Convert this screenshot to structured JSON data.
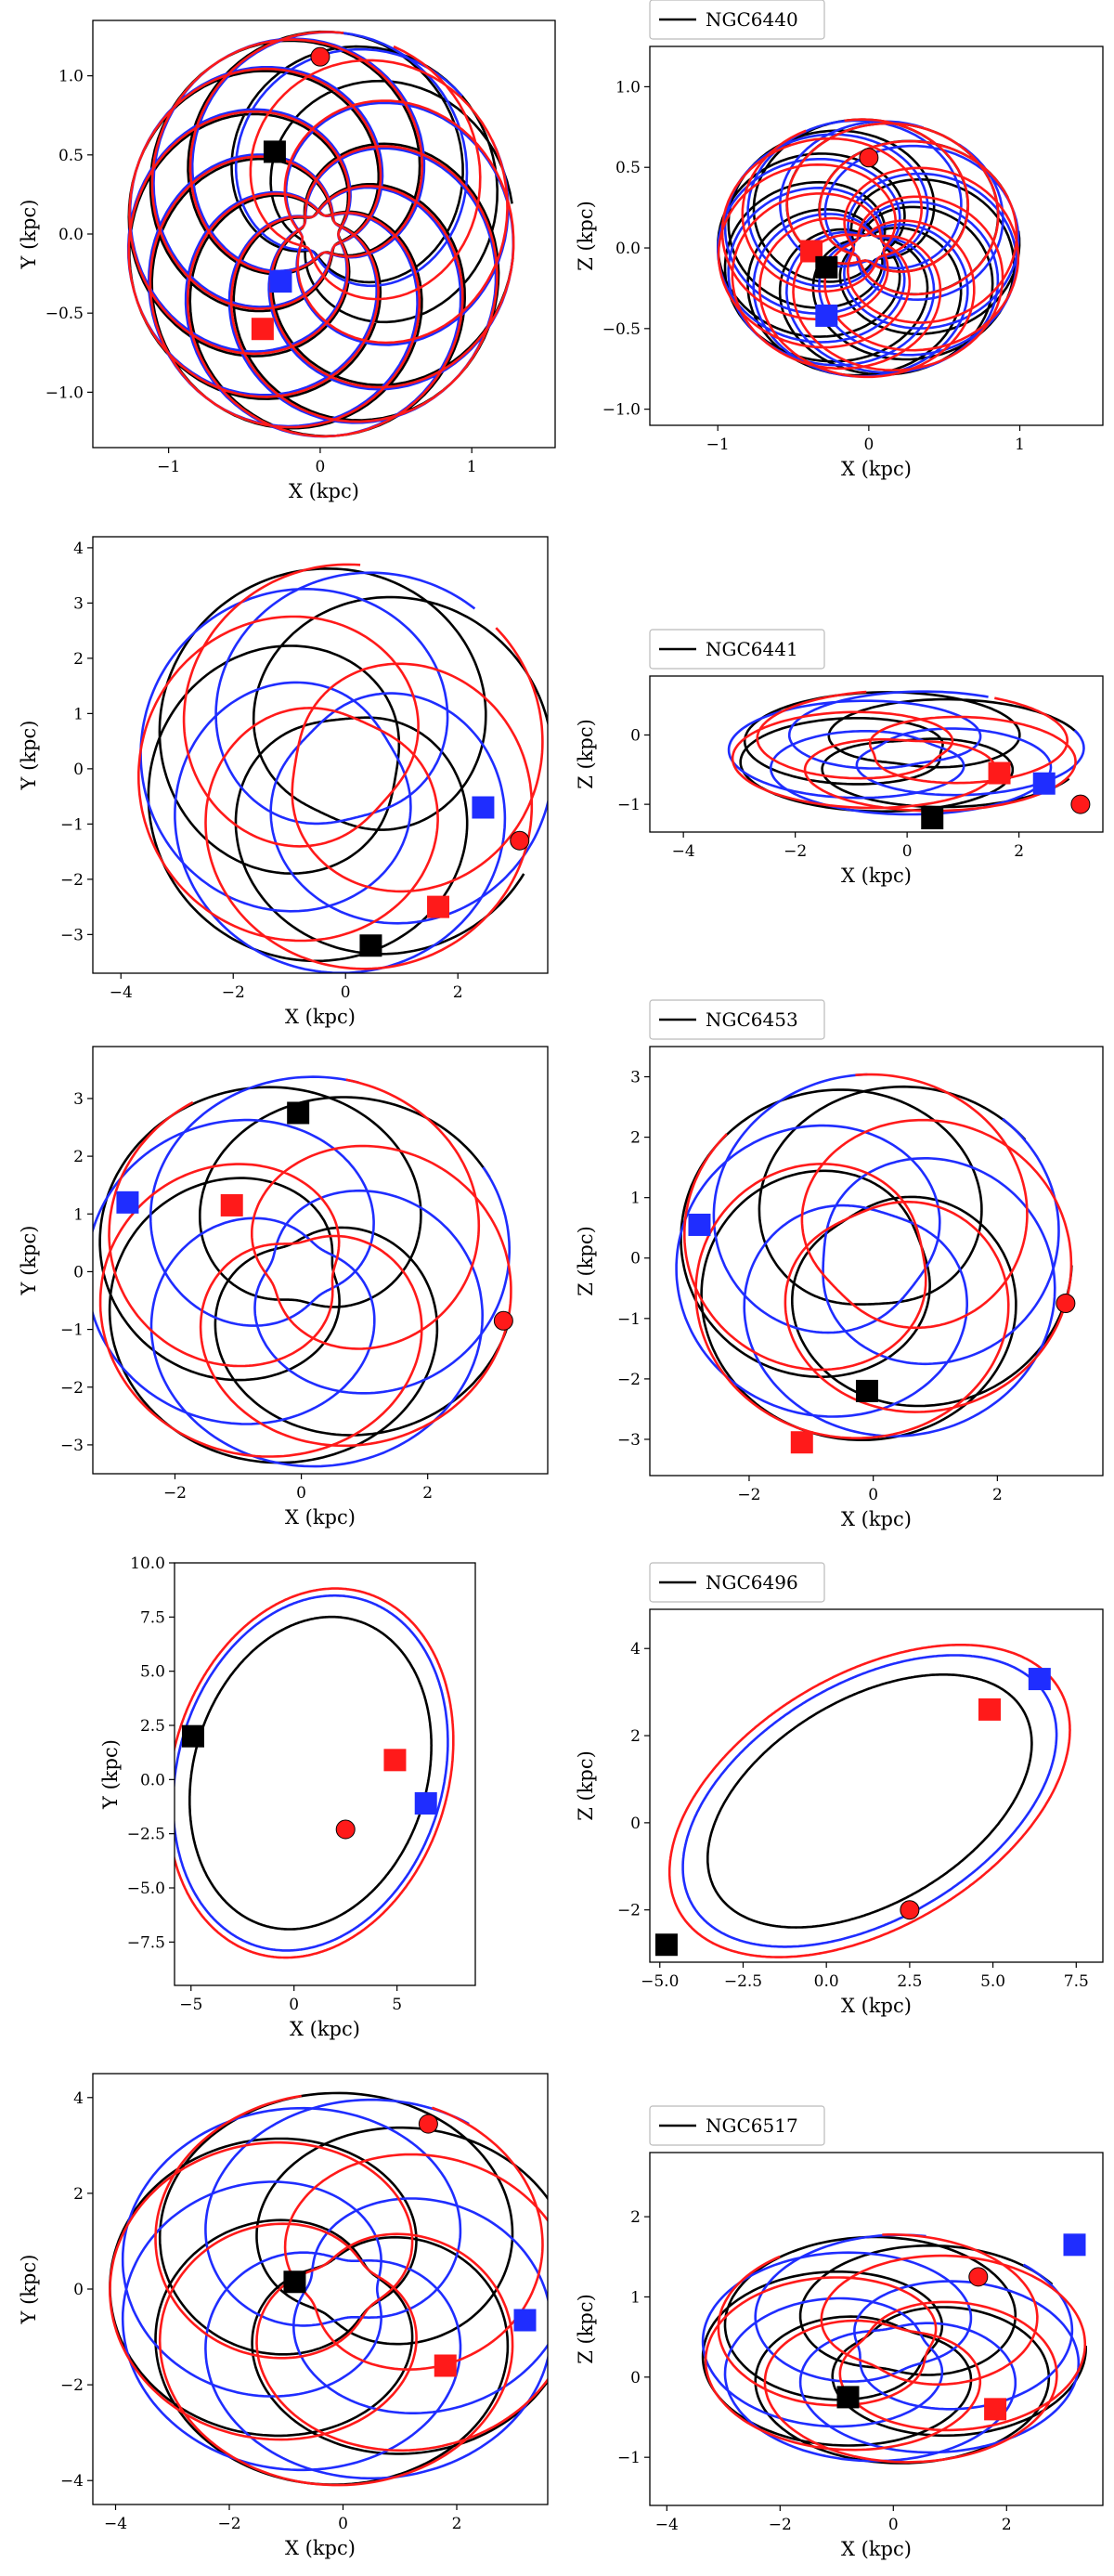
{
  "colors": {
    "black": "#000000",
    "blue": "#1f2dff",
    "red": "#ff1a1a"
  },
  "chart_data": [
    {
      "id": "NGC6440-XY",
      "type": "line",
      "title": "",
      "legend": "",
      "xlabel": "X (kpc)",
      "ylabel": "Y (kpc)",
      "xlim": [
        -1.5,
        1.55
      ],
      "ylim": [
        -1.35,
        1.35
      ],
      "xticks": [
        -1,
        0,
        1
      ],
      "yticks": [
        -1.0,
        -0.5,
        0.0,
        0.5,
        1.0
      ],
      "ytick_decimals": 1,
      "rosette": {
        "loops": 9,
        "rmax": 1.28,
        "rmin": 0.12,
        "steps": 1100
      },
      "series": [
        {
          "name": "black",
          "phase": 0.15
        },
        {
          "name": "blue",
          "phase": 0.75
        },
        {
          "name": "red",
          "phase": 1.45
        }
      ],
      "markers": [
        {
          "shape": "circle",
          "color": "red",
          "x": 0.0,
          "y": 1.12
        },
        {
          "shape": "square",
          "color": "black",
          "x": -0.3,
          "y": 0.52
        },
        {
          "shape": "square",
          "color": "blue",
          "x": -0.26,
          "y": -0.3
        },
        {
          "shape": "square",
          "color": "red",
          "x": -0.38,
          "y": -0.6
        }
      ]
    },
    {
      "id": "NGC6440-XZ",
      "type": "line",
      "title": "",
      "legend": "NGC6440",
      "xlabel": "X (kpc)",
      "ylabel": "Z (kpc)",
      "xlim": [
        -1.45,
        1.55
      ],
      "ylim": [
        -1.1,
        1.25
      ],
      "xticks": [
        -1,
        0,
        1
      ],
      "yticks": [
        -1.0,
        -0.5,
        0.0,
        0.5,
        1.0
      ],
      "ytick_decimals": 1,
      "rosette": {
        "loops": 9,
        "rmax": 1.0,
        "rmin": 0.1,
        "steps": 1100,
        "zscale": 0.8
      },
      "series": [
        {
          "name": "black",
          "phase": 0.4
        },
        {
          "name": "blue",
          "phase": 1.2
        },
        {
          "name": "red",
          "phase": 2.0
        }
      ],
      "markers": [
        {
          "shape": "circle",
          "color": "red",
          "x": 0.0,
          "y": 0.56
        },
        {
          "shape": "square",
          "color": "red",
          "x": -0.38,
          "y": -0.02
        },
        {
          "shape": "square",
          "color": "black",
          "x": -0.28,
          "y": -0.12
        },
        {
          "shape": "square",
          "color": "blue",
          "x": -0.28,
          "y": -0.42
        }
      ]
    },
    {
      "id": "NGC6441-XY",
      "type": "line",
      "title": "",
      "legend": "",
      "xlabel": "X (kpc)",
      "ylabel": "Y (kpc)",
      "xlim": [
        -4.5,
        3.6
      ],
      "ylim": [
        -3.7,
        4.2
      ],
      "xticks": [
        -4,
        -2,
        0,
        2
      ],
      "yticks": [
        -3,
        -2,
        -1,
        0,
        1,
        2,
        3,
        4
      ],
      "ytick_decimals": 0,
      "rosette": {
        "loops": 3,
        "rmax": 3.7,
        "rmin": 0.9,
        "steps": 900
      },
      "series": [
        {
          "name": "black",
          "phase": 0.2
        },
        {
          "name": "blue",
          "phase": 0.9
        },
        {
          "name": "red",
          "phase": 1.5
        }
      ],
      "markers": [
        {
          "shape": "circle",
          "color": "red",
          "x": 3.1,
          "y": -1.3
        },
        {
          "shape": "square",
          "color": "blue",
          "x": 2.45,
          "y": -0.7
        },
        {
          "shape": "square",
          "color": "red",
          "x": 1.65,
          "y": -2.5
        },
        {
          "shape": "square",
          "color": "black",
          "x": 0.45,
          "y": -3.2
        }
      ]
    },
    {
      "id": "NGC6441-XZ",
      "type": "line",
      "title": "",
      "legend": "NGC6441",
      "xlabel": "X (kpc)",
      "ylabel": "Z (kpc)",
      "xlim": [
        -4.6,
        3.5
      ],
      "ylim": [
        -1.4,
        0.85
      ],
      "xticks": [
        -4,
        -2,
        0,
        2
      ],
      "yticks": [
        -1,
        0
      ],
      "ytick_decimals": 0,
      "rosette": {
        "loops": 3,
        "rmax": 3.2,
        "rmin": 0.6,
        "steps": 900,
        "zscale": 0.28,
        "zoff": -0.25
      },
      "series": [
        {
          "name": "black",
          "phase": 0.3
        },
        {
          "name": "blue",
          "phase": 1.1
        },
        {
          "name": "red",
          "phase": 1.8
        }
      ],
      "markers": [
        {
          "shape": "circle",
          "color": "red",
          "x": 3.1,
          "y": -1.0
        },
        {
          "shape": "square",
          "color": "blue",
          "x": 2.45,
          "y": -0.7
        },
        {
          "shape": "square",
          "color": "red",
          "x": 1.65,
          "y": -0.55
        },
        {
          "shape": "square",
          "color": "black",
          "x": 0.45,
          "y": -1.2
        }
      ]
    },
    {
      "id": "NGC6453-XY",
      "type": "line",
      "title": "",
      "legend": "",
      "xlabel": "X (kpc)",
      "ylabel": "Y (kpc)",
      "xlim": [
        -3.3,
        3.9
      ],
      "ylim": [
        -3.5,
        3.9
      ],
      "xticks": [
        -2,
        0,
        2
      ],
      "yticks": [
        -3,
        -2,
        -1,
        0,
        1,
        2,
        3
      ],
      "ytick_decimals": 0,
      "rosette": {
        "loops": 3,
        "rmax": 3.4,
        "rmin": 0.5,
        "steps": 900
      },
      "series": [
        {
          "name": "black",
          "phase": 0.5
        },
        {
          "name": "blue",
          "phase": 1.3
        },
        {
          "name": "red",
          "phase": 2.1
        }
      ],
      "markers": [
        {
          "shape": "circle",
          "color": "red",
          "x": 3.2,
          "y": -0.85
        },
        {
          "shape": "square",
          "color": "black",
          "x": -0.05,
          "y": 2.75
        },
        {
          "shape": "square",
          "color": "blue",
          "x": -2.75,
          "y": 1.2
        },
        {
          "shape": "square",
          "color": "red",
          "x": -1.1,
          "y": 1.15
        }
      ]
    },
    {
      "id": "NGC6453-XZ",
      "type": "line",
      "title": "",
      "legend": "NGC6453",
      "xlabel": "X (kpc)",
      "ylabel": "Z (kpc)",
      "xlim": [
        -3.6,
        3.7
      ],
      "ylim": [
        -3.6,
        3.5
      ],
      "xticks": [
        -2,
        0,
        2
      ],
      "yticks": [
        -3,
        -2,
        -1,
        0,
        1,
        2,
        3
      ],
      "ytick_decimals": 0,
      "rosette": {
        "loops": 3,
        "rmax": 3.2,
        "rmin": 0.8,
        "steps": 900,
        "zscale": 0.95
      },
      "series": [
        {
          "name": "black",
          "phase": 0.7
        },
        {
          "name": "blue",
          "phase": 1.6
        },
        {
          "name": "red",
          "phase": 2.4
        }
      ],
      "markers": [
        {
          "shape": "circle",
          "color": "red",
          "x": 3.1,
          "y": -0.75
        },
        {
          "shape": "square",
          "color": "blue",
          "x": -2.8,
          "y": 0.55
        },
        {
          "shape": "square",
          "color": "black",
          "x": -0.1,
          "y": -2.2
        },
        {
          "shape": "square",
          "color": "red",
          "x": -1.15,
          "y": -3.05
        }
      ]
    },
    {
      "id": "NGC6496-XY",
      "type": "line",
      "title": "",
      "legend": "",
      "xlabel": "X (kpc)",
      "ylabel": "Y (kpc)",
      "xlim": [
        -5.8,
        8.8
      ],
      "ylim": [
        -9.5,
        10.0
      ],
      "xticks": [
        -5,
        0,
        5
      ],
      "yticks": [
        -7.5,
        -5.0,
        -2.5,
        0.0,
        2.5,
        5.0,
        7.5,
        10.0
      ],
      "ytick_decimals": 1,
      "ellipse": {
        "a": 6.4,
        "b": 8.4,
        "cx": 0.8,
        "cy": 0.3,
        "rot": -0.35,
        "steps": 700
      },
      "series": [
        {
          "name": "black",
          "scale": 0.88
        },
        {
          "name": "blue",
          "scale": 1.0
        },
        {
          "name": "red",
          "scale": 1.04
        }
      ],
      "markers": [
        {
          "shape": "circle",
          "color": "red",
          "x": 2.5,
          "y": -2.3
        },
        {
          "shape": "square",
          "color": "red",
          "x": 4.9,
          "y": 0.9
        },
        {
          "shape": "square",
          "color": "blue",
          "x": 6.4,
          "y": -1.1
        },
        {
          "shape": "square",
          "color": "black",
          "x": -4.9,
          "y": 2.0
        }
      ]
    },
    {
      "id": "NGC6496-XZ",
      "type": "line",
      "title": "",
      "legend": "NGC6496",
      "xlabel": "X (kpc)",
      "ylabel": "Z (kpc)",
      "xlim": [
        -5.3,
        8.3
      ],
      "ylim": [
        -3.2,
        4.9
      ],
      "xticks": [
        -5.0,
        -2.5,
        0.0,
        2.5,
        5.0,
        7.5
      ],
      "yticks": [
        -2,
        0,
        2,
        4
      ],
      "ytick_decimals": 0,
      "ellipse": {
        "a": 6.0,
        "b": 2.9,
        "cx": 1.3,
        "cy": 0.5,
        "rot": 0.35,
        "steps": 700
      },
      "series": [
        {
          "name": "black",
          "scale": 0.85
        },
        {
          "name": "blue",
          "scale": 0.98
        },
        {
          "name": "red",
          "scale": 1.05
        }
      ],
      "markers": [
        {
          "shape": "circle",
          "color": "red",
          "x": 2.5,
          "y": -2.0
        },
        {
          "shape": "square",
          "color": "red",
          "x": 4.9,
          "y": 2.6
        },
        {
          "shape": "square",
          "color": "blue",
          "x": 6.4,
          "y": 3.3
        },
        {
          "shape": "square",
          "color": "black",
          "x": -4.8,
          "y": -2.8
        }
      ]
    },
    {
      "id": "NGC6517-XY",
      "type": "line",
      "title": "",
      "legend": "",
      "xlabel": "X (kpc)",
      "ylabel": "Y (kpc)",
      "xlim": [
        -4.4,
        3.6
      ],
      "ylim": [
        -4.5,
        4.5
      ],
      "xticks": [
        -4,
        -2,
        0,
        2
      ],
      "yticks": [
        -4,
        -2,
        0,
        2,
        4
      ],
      "ytick_decimals": 0,
      "rosette": {
        "loops": 4,
        "rmax": 4.1,
        "rmin": 0.6,
        "steps": 1000
      },
      "series": [
        {
          "name": "black",
          "phase": 0.25
        },
        {
          "name": "blue",
          "phase": 1.0
        },
        {
          "name": "red",
          "phase": 1.75
        }
      ],
      "markers": [
        {
          "shape": "circle",
          "color": "red",
          "x": 1.5,
          "y": 3.45
        },
        {
          "shape": "square",
          "color": "black",
          "x": -0.85,
          "y": 0.15
        },
        {
          "shape": "square",
          "color": "blue",
          "x": 3.2,
          "y": -0.65
        },
        {
          "shape": "square",
          "color": "red",
          "x": 1.8,
          "y": -1.6
        }
      ]
    },
    {
      "id": "NGC6517-XZ",
      "type": "line",
      "title": "",
      "legend": "NGC6517",
      "xlabel": "X (kpc)",
      "ylabel": "Z (kpc)",
      "xlim": [
        -4.3,
        3.7
      ],
      "ylim": [
        -1.6,
        2.8
      ],
      "xticks": [
        -4,
        -2,
        0,
        2
      ],
      "yticks": [
        -1,
        0,
        1,
        2
      ],
      "ytick_decimals": 0,
      "rosette": {
        "loops": 4,
        "rmax": 3.4,
        "rmin": 0.6,
        "steps": 1000,
        "zscale": 0.42,
        "zoff": 0.35
      },
      "series": [
        {
          "name": "black",
          "phase": 0.6
        },
        {
          "name": "blue",
          "phase": 1.4
        },
        {
          "name": "red",
          "phase": 2.2
        }
      ],
      "markers": [
        {
          "shape": "circle",
          "color": "red",
          "x": 1.5,
          "y": 1.25
        },
        {
          "shape": "square",
          "color": "blue",
          "x": 3.2,
          "y": 1.65
        },
        {
          "shape": "square",
          "color": "black",
          "x": -0.8,
          "y": -0.25
        },
        {
          "shape": "square",
          "color": "red",
          "x": 1.8,
          "y": -0.4
        }
      ]
    }
  ]
}
